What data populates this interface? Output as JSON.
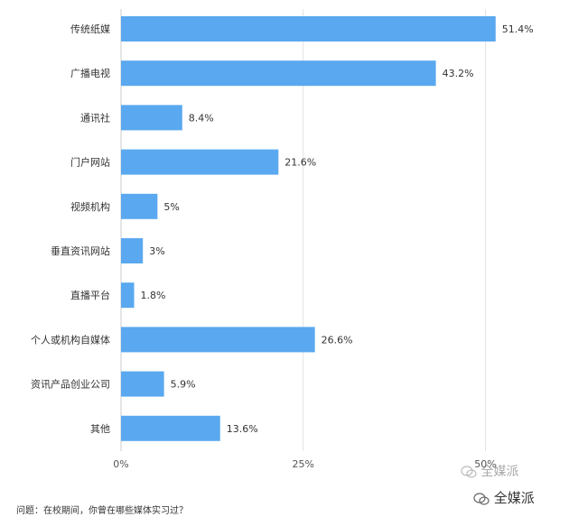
{
  "chart_data": {
    "type": "bar",
    "orientation": "horizontal",
    "categories": [
      "传统纸媒",
      "广播电视",
      "通讯社",
      "门户网站",
      "视频机构",
      "垂直资讯网站",
      "直播平台",
      "个人或机构自媒体",
      "资讯产品创业公司",
      "其他"
    ],
    "values": [
      51.4,
      43.2,
      8.4,
      21.6,
      5,
      3,
      1.8,
      26.6,
      5.9,
      13.6
    ],
    "value_labels": [
      "51.4%",
      "43.2%",
      "8.4%",
      "21.6%",
      "5%",
      "3%",
      "1.8%",
      "26.6%",
      "5.9%",
      "13.6%"
    ],
    "xlim": [
      0,
      50
    ],
    "xticks": [
      0,
      25,
      50
    ],
    "xtick_labels": [
      "0%",
      "25%",
      "50%"
    ],
    "grid": "vertical",
    "bar_color": "#5aa8ef"
  },
  "footer": "问题：在校期间，你曾在哪些媒体实习过？",
  "watermark": {
    "text1": "全媒派",
    "text2": "全媒派",
    "icon": "wechat-icon"
  }
}
